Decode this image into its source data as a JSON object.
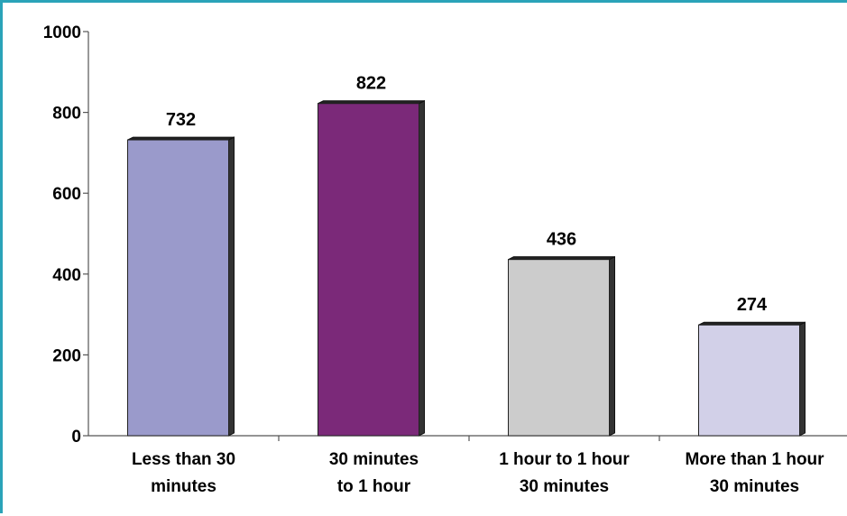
{
  "chart_data": {
    "type": "bar",
    "categories": [
      [
        "Less than 30",
        "minutes"
      ],
      [
        "30 minutes",
        "to 1 hour"
      ],
      [
        "1 hour  to 1 hour",
        "30 minutes"
      ],
      [
        "More than 1 hour",
        "30 minutes"
      ]
    ],
    "values": [
      732,
      822,
      436,
      274
    ],
    "data_labels": [
      "732",
      "822",
      "436",
      "274"
    ],
    "colors": [
      "#9a9acb",
      "#7b2979",
      "#cccccc",
      "#d2d0e8"
    ],
    "ylim": [
      0,
      1000
    ],
    "yticks": [
      0,
      200,
      400,
      600,
      800,
      1000
    ],
    "ytick_labels": [
      "0",
      "200",
      "400",
      "600",
      "800",
      "1000"
    ],
    "grid": false,
    "legend": "none",
    "title": "",
    "xlabel": "",
    "ylabel": ""
  }
}
